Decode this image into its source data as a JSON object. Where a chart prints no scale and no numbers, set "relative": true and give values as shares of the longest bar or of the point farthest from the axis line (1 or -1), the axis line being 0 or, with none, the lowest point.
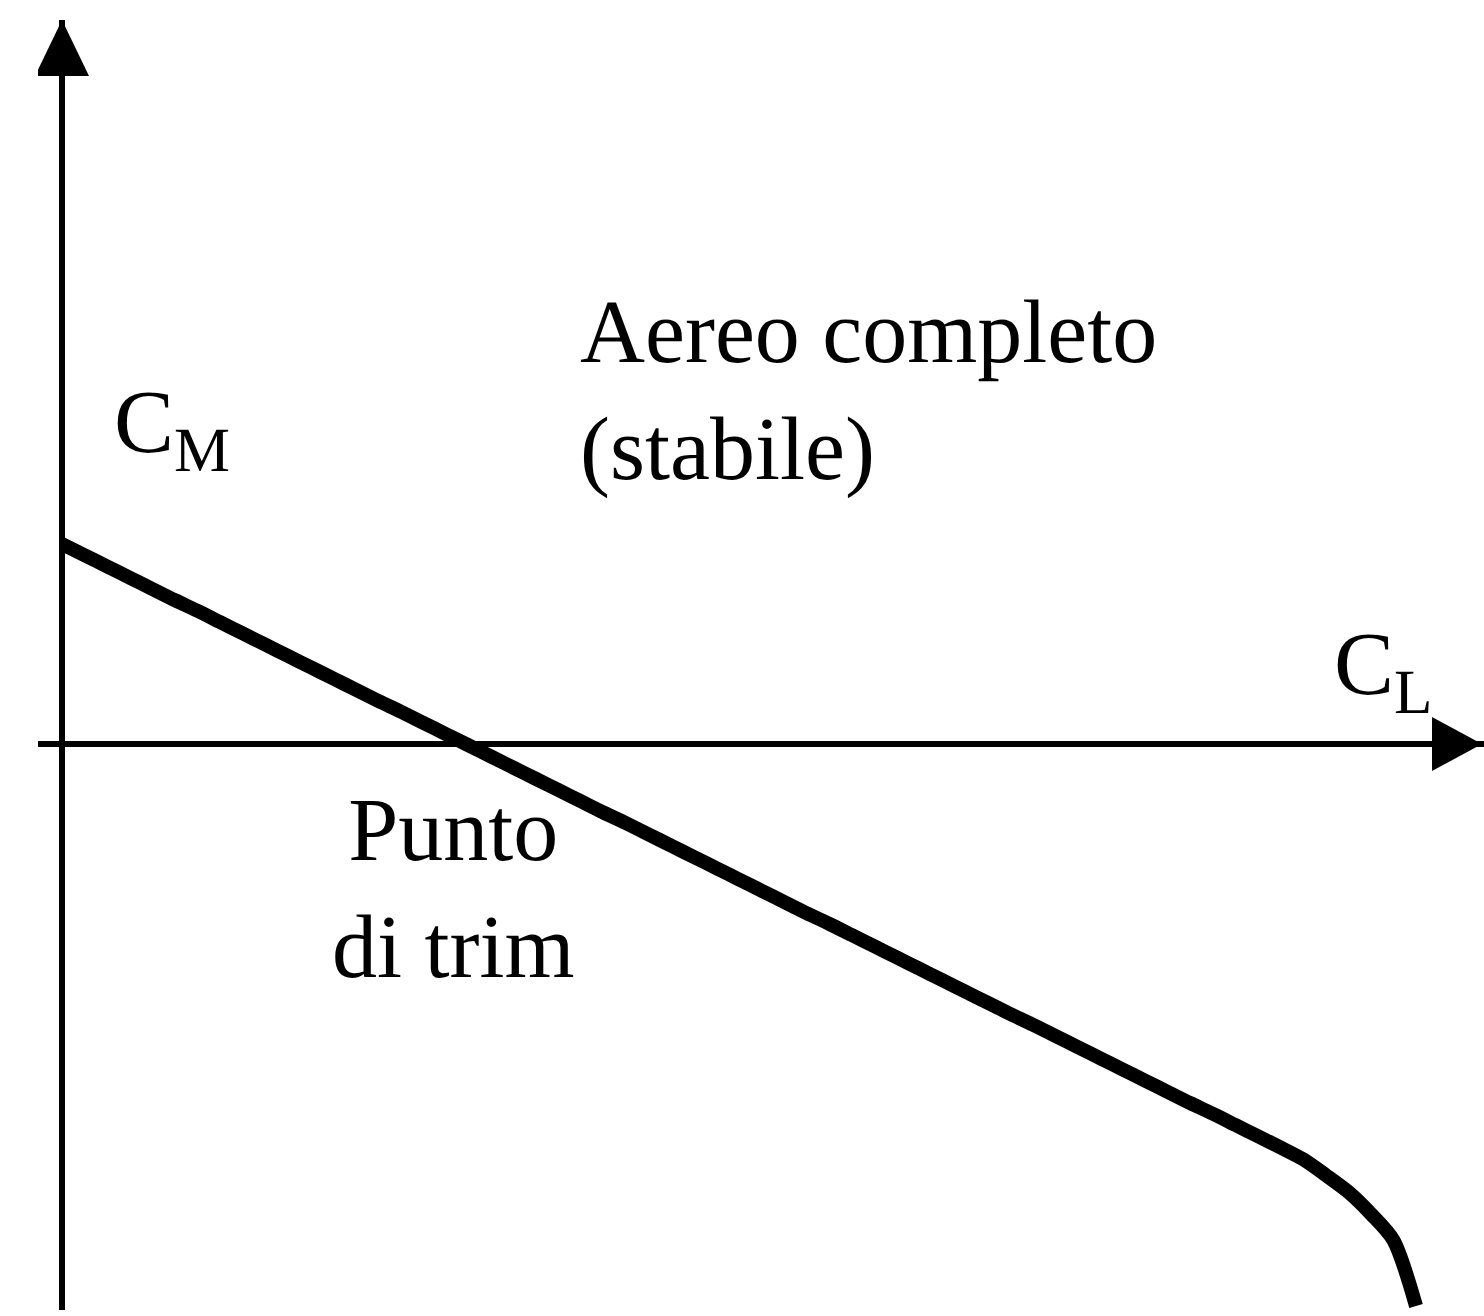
{
  "chart_data": {
    "type": "line",
    "title": "Aereo completo\n(stabile)",
    "xlabel": "C$_{L}$",
    "ylabel": "C$_{M}$",
    "annotations": [
      {
        "text": "Punto\ndi trim",
        "y": 0
      }
    ],
    "relative": true,
    "categories": [
      null,
      null,
      null,
      null,
      null,
      null,
      null,
      null,
      null,
      null,
      null,
      null,
      null,
      null,
      null,
      null,
      null,
      null,
      null,
      null,
      null,
      null,
      null,
      null,
      null,
      null,
      null,
      null,
      null,
      null,
      null,
      null,
      null,
      null,
      null,
      null,
      null,
      null,
      null,
      null,
      null,
      null,
      null,
      null,
      null,
      null,
      null,
      null,
      null,
      null,
      null,
      null,
      null,
      null,
      null,
      null,
      null,
      null,
      null,
      null,
      null
    ],
    "series": [
      {
        "color": "#000000",
        "values": [
          0.356,
          0.336,
          0.316,
          0.296,
          0.276,
          0.256,
          0.237,
          0.217,
          0.197,
          0.177,
          0.157,
          0.137,
          0.117,
          0.097,
          0.077,
          0.058,
          0.038,
          0.018,
          -0.002,
          -0.022,
          -0.042,
          -0.062,
          -0.082,
          -0.102,
          -0.122,
          -0.141,
          -0.161,
          -0.181,
          -0.201,
          -0.221,
          -0.241,
          -0.261,
          -0.281,
          -0.301,
          -0.32,
          -0.34,
          -0.36,
          -0.38,
          -0.4,
          -0.42,
          -0.44,
          -0.46,
          -0.48,
          -0.499,
          -0.519,
          -0.539,
          -0.559,
          -0.579,
          -0.599,
          -0.619,
          -0.639,
          -0.658,
          -0.678,
          -0.698,
          -0.718,
          -0.739,
          -0.767,
          -0.797,
          -0.836,
          -0.883,
          -1.0
        ]
      }
    ]
  }
}
